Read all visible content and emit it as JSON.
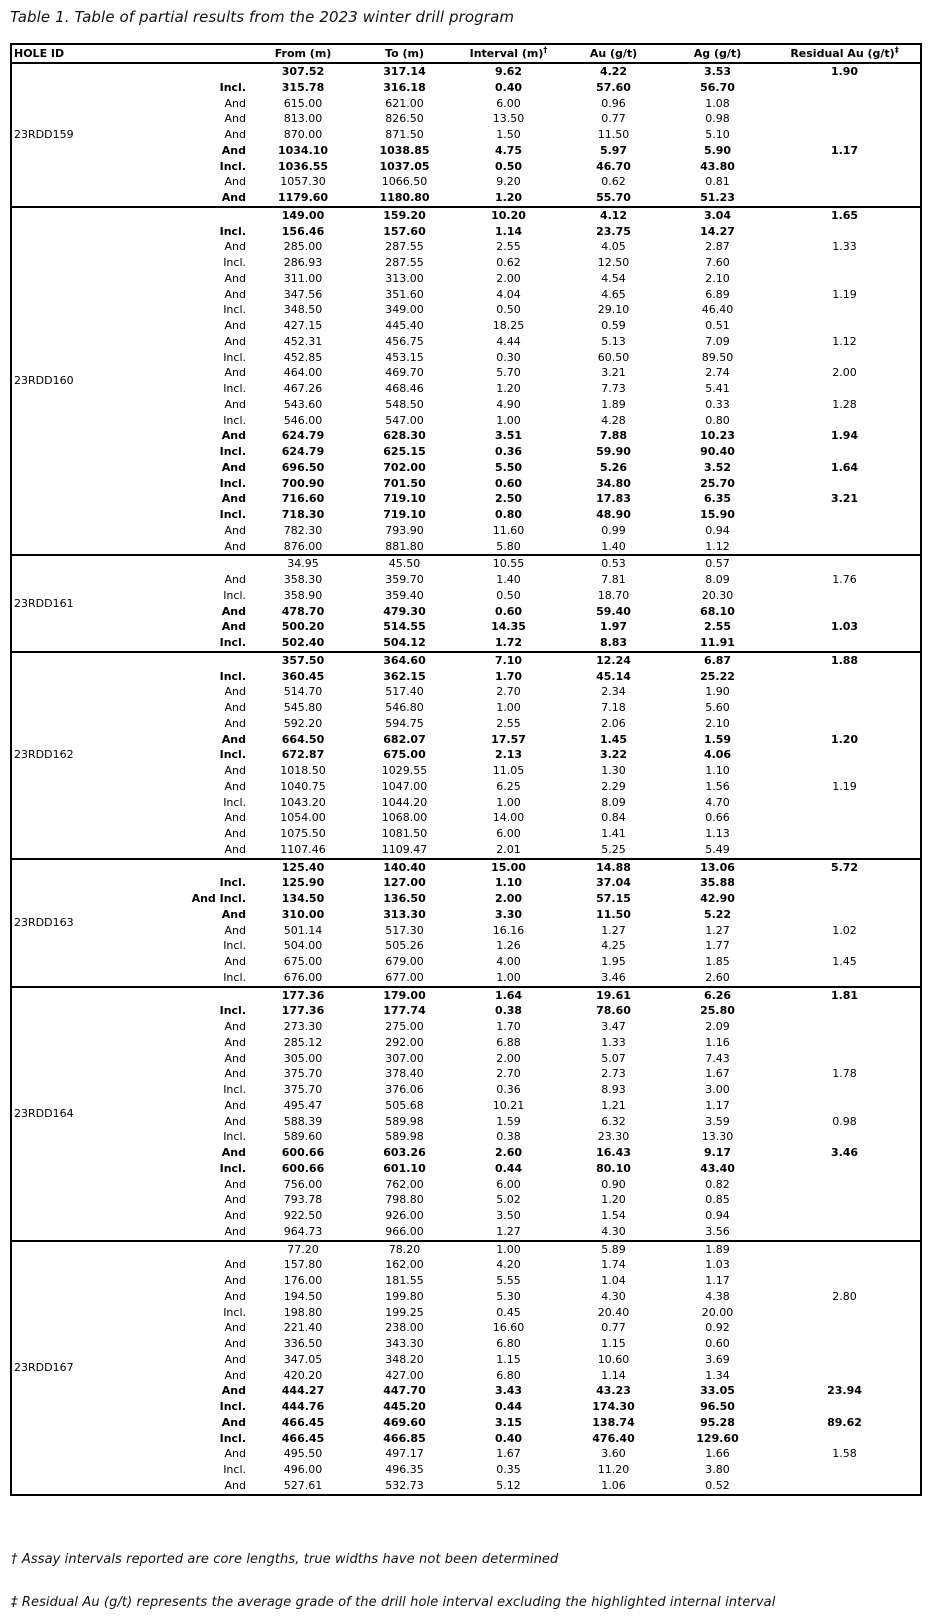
{
  "title": "Table 1. Table of partial results from the 2023 winter drill program",
  "table": {
    "header": {
      "hole_id": "HOLE ID",
      "from": "From (m)",
      "to": "To (m)",
      "interval": "Interval (m)",
      "interval_sup": "†",
      "au": "Au (g/t)",
      "ag": "Ag (g/t)",
      "residual": "Residual Au (g/t)",
      "residual_sup": "‡"
    },
    "row_format": [
      "qualifier",
      "from_m",
      "to_m",
      "interval_m",
      "au_gpt",
      "ag_gpt",
      "residual_au_gpt",
      "is_bold_highlight"
    ],
    "groups": [
      {
        "hole_id": "23RDD159",
        "rows": [
          [
            "",
            "307.52",
            "317.14",
            "9.62",
            "4.22",
            "3.53",
            "1.90",
            1
          ],
          [
            "Incl.",
            "315.78",
            "316.18",
            "0.40",
            "57.60",
            "56.70",
            "",
            1
          ],
          [
            "And",
            "615.00",
            "621.00",
            "6.00",
            "0.96",
            "1.08",
            "",
            0
          ],
          [
            "And",
            "813.00",
            "826.50",
            "13.50",
            "0.77",
            "0.98",
            "",
            0
          ],
          [
            "And",
            "870.00",
            "871.50",
            "1.50",
            "11.50",
            "5.10",
            "",
            0
          ],
          [
            "And",
            "1034.10",
            "1038.85",
            "4.75",
            "5.97",
            "5.90",
            "1.17",
            1
          ],
          [
            "Incl.",
            "1036.55",
            "1037.05",
            "0.50",
            "46.70",
            "43.80",
            "",
            1
          ],
          [
            "And",
            "1057.30",
            "1066.50",
            "9.20",
            "0.62",
            "0.81",
            "",
            0
          ],
          [
            "And",
            "1179.60",
            "1180.80",
            "1.20",
            "55.70",
            "51.23",
            "",
            1
          ]
        ]
      },
      {
        "hole_id": "23RDD160",
        "rows": [
          [
            "",
            "149.00",
            "159.20",
            "10.20",
            "4.12",
            "3.04",
            "1.65",
            1
          ],
          [
            "Incl.",
            "156.46",
            "157.60",
            "1.14",
            "23.75",
            "14.27",
            "",
            1
          ],
          [
            "And",
            "285.00",
            "287.55",
            "2.55",
            "4.05",
            "2.87",
            "1.33",
            0
          ],
          [
            "Incl.",
            "286.93",
            "287.55",
            "0.62",
            "12.50",
            "7.60",
            "",
            0
          ],
          [
            "And",
            "311.00",
            "313.00",
            "2.00",
            "4.54",
            "2.10",
            "",
            0
          ],
          [
            "And",
            "347.56",
            "351.60",
            "4.04",
            "4.65",
            "6.89",
            "1.19",
            0
          ],
          [
            "Incl.",
            "348.50",
            "349.00",
            "0.50",
            "29.10",
            "46.40",
            "",
            0
          ],
          [
            "And",
            "427.15",
            "445.40",
            "18.25",
            "0.59",
            "0.51",
            "",
            0
          ],
          [
            "And",
            "452.31",
            "456.75",
            "4.44",
            "5.13",
            "7.09",
            "1.12",
            0
          ],
          [
            "Incl.",
            "452.85",
            "453.15",
            "0.30",
            "60.50",
            "89.50",
            "",
            0
          ],
          [
            "And",
            "464.00",
            "469.70",
            "5.70",
            "3.21",
            "2.74",
            "2.00",
            0
          ],
          [
            "Incl.",
            "467.26",
            "468.46",
            "1.20",
            "7.73",
            "5.41",
            "",
            0
          ],
          [
            "And",
            "543.60",
            "548.50",
            "4.90",
            "1.89",
            "0.33",
            "1.28",
            0
          ],
          [
            "Incl.",
            "546.00",
            "547.00",
            "1.00",
            "4.28",
            "0.80",
            "",
            0
          ],
          [
            "And",
            "624.79",
            "628.30",
            "3.51",
            "7.88",
            "10.23",
            "1.94",
            1
          ],
          [
            "Incl.",
            "624.79",
            "625.15",
            "0.36",
            "59.90",
            "90.40",
            "",
            1
          ],
          [
            "And",
            "696.50",
            "702.00",
            "5.50",
            "5.26",
            "3.52",
            "1.64",
            1
          ],
          [
            "Incl.",
            "700.90",
            "701.50",
            "0.60",
            "34.80",
            "25.70",
            "",
            1
          ],
          [
            "And",
            "716.60",
            "719.10",
            "2.50",
            "17.83",
            "6.35",
            "3.21",
            1
          ],
          [
            "Incl.",
            "718.30",
            "719.10",
            "0.80",
            "48.90",
            "15.90",
            "",
            1
          ],
          [
            "And",
            "782.30",
            "793.90",
            "11.60",
            "0.99",
            "0.94",
            "",
            0
          ],
          [
            "And",
            "876.00",
            "881.80",
            "5.80",
            "1.40",
            "1.12",
            "",
            0
          ]
        ]
      },
      {
        "hole_id": "23RDD161",
        "rows": [
          [
            "",
            "34.95",
            "45.50",
            "10.55",
            "0.53",
            "0.57",
            "",
            0
          ],
          [
            "And",
            "358.30",
            "359.70",
            "1.40",
            "7.81",
            "8.09",
            "1.76",
            0
          ],
          [
            "Incl.",
            "358.90",
            "359.40",
            "0.50",
            "18.70",
            "20.30",
            "",
            0
          ],
          [
            "And",
            "478.70",
            "479.30",
            "0.60",
            "59.40",
            "68.10",
            "",
            1
          ],
          [
            "And",
            "500.20",
            "514.55",
            "14.35",
            "1.97",
            "2.55",
            "1.03",
            1
          ],
          [
            "Incl.",
            "502.40",
            "504.12",
            "1.72",
            "8.83",
            "11.91",
            "",
            1
          ]
        ]
      },
      {
        "hole_id": "23RDD162",
        "rows": [
          [
            "",
            "357.50",
            "364.60",
            "7.10",
            "12.24",
            "6.87",
            "1.88",
            1
          ],
          [
            "Incl.",
            "360.45",
            "362.15",
            "1.70",
            "45.14",
            "25.22",
            "",
            1
          ],
          [
            "And",
            "514.70",
            "517.40",
            "2.70",
            "2.34",
            "1.90",
            "",
            0
          ],
          [
            "And",
            "545.80",
            "546.80",
            "1.00",
            "7.18",
            "5.60",
            "",
            0
          ],
          [
            "And",
            "592.20",
            "594.75",
            "2.55",
            "2.06",
            "2.10",
            "",
            0
          ],
          [
            "And",
            "664.50",
            "682.07",
            "17.57",
            "1.45",
            "1.59",
            "1.20",
            1
          ],
          [
            "Incl.",
            "672.87",
            "675.00",
            "2.13",
            "3.22",
            "4.06",
            "",
            1
          ],
          [
            "And",
            "1018.50",
            "1029.55",
            "11.05",
            "1.30",
            "1.10",
            "",
            0
          ],
          [
            "And",
            "1040.75",
            "1047.00",
            "6.25",
            "2.29",
            "1.56",
            "1.19",
            0
          ],
          [
            "Incl.",
            "1043.20",
            "1044.20",
            "1.00",
            "8.09",
            "4.70",
            "",
            0
          ],
          [
            "And",
            "1054.00",
            "1068.00",
            "14.00",
            "0.84",
            "0.66",
            "",
            0
          ],
          [
            "And",
            "1075.50",
            "1081.50",
            "6.00",
            "1.41",
            "1.13",
            "",
            0
          ],
          [
            "And",
            "1107.46",
            "1109.47",
            "2.01",
            "5.25",
            "5.49",
            "",
            0
          ]
        ]
      },
      {
        "hole_id": "23RDD163",
        "rows": [
          [
            "",
            "125.40",
            "140.40",
            "15.00",
            "14.88",
            "13.06",
            "5.72",
            1
          ],
          [
            "Incl.",
            "125.90",
            "127.00",
            "1.10",
            "37.04",
            "35.88",
            "",
            1
          ],
          [
            "And Incl.",
            "134.50",
            "136.50",
            "2.00",
            "57.15",
            "42.90",
            "",
            1
          ],
          [
            "And",
            "310.00",
            "313.30",
            "3.30",
            "11.50",
            "5.22",
            "",
            1
          ],
          [
            "And",
            "501.14",
            "517.30",
            "16.16",
            "1.27",
            "1.27",
            "1.02",
            0
          ],
          [
            "Incl.",
            "504.00",
            "505.26",
            "1.26",
            "4.25",
            "1.77",
            "",
            0
          ],
          [
            "And",
            "675.00",
            "679.00",
            "4.00",
            "1.95",
            "1.85",
            "1.45",
            0
          ],
          [
            "Incl.",
            "676.00",
            "677.00",
            "1.00",
            "3.46",
            "2.60",
            "",
            0
          ]
        ]
      },
      {
        "hole_id": "23RDD164",
        "rows": [
          [
            "",
            "177.36",
            "179.00",
            "1.64",
            "19.61",
            "6.26",
            "1.81",
            1
          ],
          [
            "Incl.",
            "177.36",
            "177.74",
            "0.38",
            "78.60",
            "25.80",
            "",
            1
          ],
          [
            "And",
            "273.30",
            "275.00",
            "1.70",
            "3.47",
            "2.09",
            "",
            0
          ],
          [
            "And",
            "285.12",
            "292.00",
            "6.88",
            "1.33",
            "1.16",
            "",
            0
          ],
          [
            "And",
            "305.00",
            "307.00",
            "2.00",
            "5.07",
            "7.43",
            "",
            0
          ],
          [
            "And",
            "375.70",
            "378.40",
            "2.70",
            "2.73",
            "1.67",
            "1.78",
            0
          ],
          [
            "Incl.",
            "375.70",
            "376.06",
            "0.36",
            "8.93",
            "3.00",
            "",
            0
          ],
          [
            "And",
            "495.47",
            "505.68",
            "10.21",
            "1.21",
            "1.17",
            "",
            0
          ],
          [
            "And",
            "588.39",
            "589.98",
            "1.59",
            "6.32",
            "3.59",
            "0.98",
            0
          ],
          [
            "Incl.",
            "589.60",
            "589.98",
            "0.38",
            "23.30",
            "13.30",
            "",
            0
          ],
          [
            "And",
            "600.66",
            "603.26",
            "2.60",
            "16.43",
            "9.17",
            "3.46",
            1
          ],
          [
            "Incl.",
            "600.66",
            "601.10",
            "0.44",
            "80.10",
            "43.40",
            "",
            1
          ],
          [
            "And",
            "756.00",
            "762.00",
            "6.00",
            "0.90",
            "0.82",
            "",
            0
          ],
          [
            "And",
            "793.78",
            "798.80",
            "5.02",
            "1.20",
            "0.85",
            "",
            0
          ],
          [
            "And",
            "922.50",
            "926.00",
            "3.50",
            "1.54",
            "0.94",
            "",
            0
          ],
          [
            "And",
            "964.73",
            "966.00",
            "1.27",
            "4.30",
            "3.56",
            "",
            0
          ]
        ]
      },
      {
        "hole_id": "23RDD167",
        "rows": [
          [
            "",
            "77.20",
            "78.20",
            "1.00",
            "5.89",
            "1.89",
            "",
            0
          ],
          [
            "And",
            "157.80",
            "162.00",
            "4.20",
            "1.74",
            "1.03",
            "",
            0
          ],
          [
            "And",
            "176.00",
            "181.55",
            "5.55",
            "1.04",
            "1.17",
            "",
            0
          ],
          [
            "And",
            "194.50",
            "199.80",
            "5.30",
            "4.30",
            "4.38",
            "2.80",
            0
          ],
          [
            "Incl.",
            "198.80",
            "199.25",
            "0.45",
            "20.40",
            "20.00",
            "",
            0
          ],
          [
            "And",
            "221.40",
            "238.00",
            "16.60",
            "0.77",
            "0.92",
            "",
            0
          ],
          [
            "And",
            "336.50",
            "343.30",
            "6.80",
            "1.15",
            "0.60",
            "",
            0
          ],
          [
            "And",
            "347.05",
            "348.20",
            "1.15",
            "10.60",
            "3.69",
            "",
            0
          ],
          [
            "And",
            "420.20",
            "427.00",
            "6.80",
            "1.14",
            "1.34",
            "",
            0
          ],
          [
            "And",
            "444.27",
            "447.70",
            "3.43",
            "43.23",
            "33.05",
            "23.94",
            1
          ],
          [
            "Incl.",
            "444.76",
            "445.20",
            "0.44",
            "174.30",
            "96.50",
            "",
            1
          ],
          [
            "And",
            "466.45",
            "469.60",
            "3.15",
            "138.74",
            "95.28",
            "89.62",
            1
          ],
          [
            "Incl.",
            "466.45",
            "466.85",
            "0.40",
            "476.40",
            "129.60",
            "",
            1
          ],
          [
            "And",
            "495.50",
            "497.17",
            "1.67",
            "3.60",
            "1.66",
            "1.58",
            0
          ],
          [
            "Incl.",
            "496.00",
            "496.35",
            "0.35",
            "11.20",
            "3.80",
            "",
            0
          ],
          [
            "And",
            "527.61",
            "532.73",
            "5.12",
            "1.06",
            "0.52",
            "",
            0
          ]
        ]
      }
    ]
  },
  "footnotes": {
    "assay": "† Assay intervals reported are core lengths, true widths have not been determined",
    "residual": "‡ Residual Au (g/t) represents the average grade of the drill hole interval excluding the highlighted internal interval"
  }
}
